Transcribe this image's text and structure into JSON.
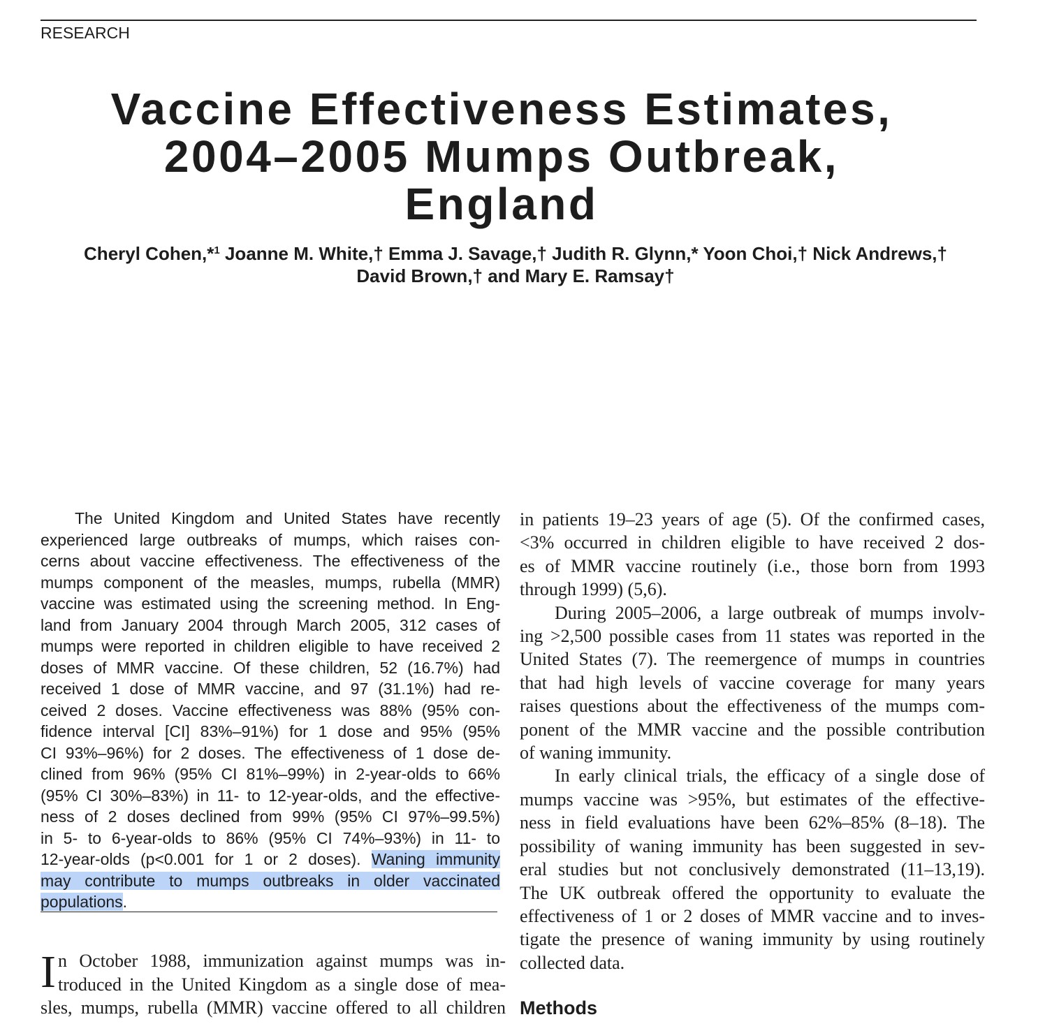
{
  "section": "RESEARCH",
  "title": {
    "lines": [
      "Vaccine Effectiveness Estimates,",
      "2004–2005 Mumps Outbreak,",
      "England"
    ]
  },
  "authors": {
    "lines": [
      [
        "Cheryl Cohen,*",
        "1",
        " Joanne M. White,† Emma J. Savage,† Judith R. Glynn,* Yoon Choi,† Nick Andrews,†"
      ],
      [
        "David Brown,† and Mary E. Ramsay†"
      ]
    ]
  },
  "abstract": {
    "lines": [
      "The United Kingdom and United States have recently",
      "experienced large outbreaks of mumps, which raises con-",
      "cerns about vaccine effectiveness. The effectiveness of the",
      "mumps component of the measles, mumps, rubella (MMR)",
      "vaccine was estimated using the screening method. In Eng-",
      "land from January 2004 through March 2005, 312 cases of",
      "mumps were reported in children eligible to have received 2",
      "doses of MMR vaccine. Of these children, 52 (16.7%) had",
      "received 1 dose of MMR vaccine, and 97 (31.1%) had re-",
      "ceived 2 doses. Vaccine effectiveness was 88% (95% con-",
      "fidence interval [CI] 83%–91%) for 1 dose and 95% (95%",
      "CI 93%–96%) for 2 doses. The effectiveness of 1 dose de-",
      "clined from 96% (95% CI 81%–99%) in 2-year-olds to 66%",
      "(95% CI 30%–83%) in 11- to 12-year-olds, and the effective-",
      "ness of 2 doses declined from 99% (95% CI 97%–99.5%)",
      "in 5- to 6-year-olds to 86% (95% CI 74%–93%) in 11- to",
      "12-year-olds (p<0.001 for 1 or 2 doses)."
    ],
    "highlighted": [
      "Waning immunity",
      "may contribute to mumps outbreaks in older vaccinated",
      "populations"
    ],
    "end": "."
  },
  "intro": {
    "drop_cap": "I",
    "lines": [
      "n October 1988, immunization against mumps was in-",
      "troduced in the United Kingdom as a single dose of mea-",
      "sles, mumps, rubella (MMR) vaccine offered to all children"
    ]
  },
  "right_column": {
    "paragraphs": [
      [
        "in patients 19–23 years of age (5). Of the confirmed cases,",
        "<3% occurred in children eligible to have received 2 dos-",
        "es of MMR vaccine routinely (i.e., those born from 1993",
        "through 1999) (5,6)."
      ],
      [
        "During 2005–2006, a large outbreak of mumps involv-",
        "ing >2,500 possible cases from 11 states was reported in the",
        "United States (7). The reemergence of mumps in countries",
        "that had high levels of vaccine coverage for many years",
        "raises questions about the effectiveness of the mumps com-",
        "ponent of the MMR vaccine and the possible contribution",
        "of waning immunity."
      ],
      [
        "In early clinical trials, the efficacy of a single dose of",
        "mumps vaccine was >95%, but estimates of the effective-",
        "ness in field evaluations have been 62%–85% (8–18). The",
        "possibility of waning immunity has been suggested in sev-",
        "eral studies but not conclusively demonstrated (11–13,19).",
        "The UK outbreak offered the opportunity to evaluate the",
        "effectiveness of 1 or 2 doses of MMR vaccine and to inves-",
        "tigate the presence of waning immunity by using routinely",
        "collected data."
      ]
    ]
  },
  "methods_heading": "Methods"
}
